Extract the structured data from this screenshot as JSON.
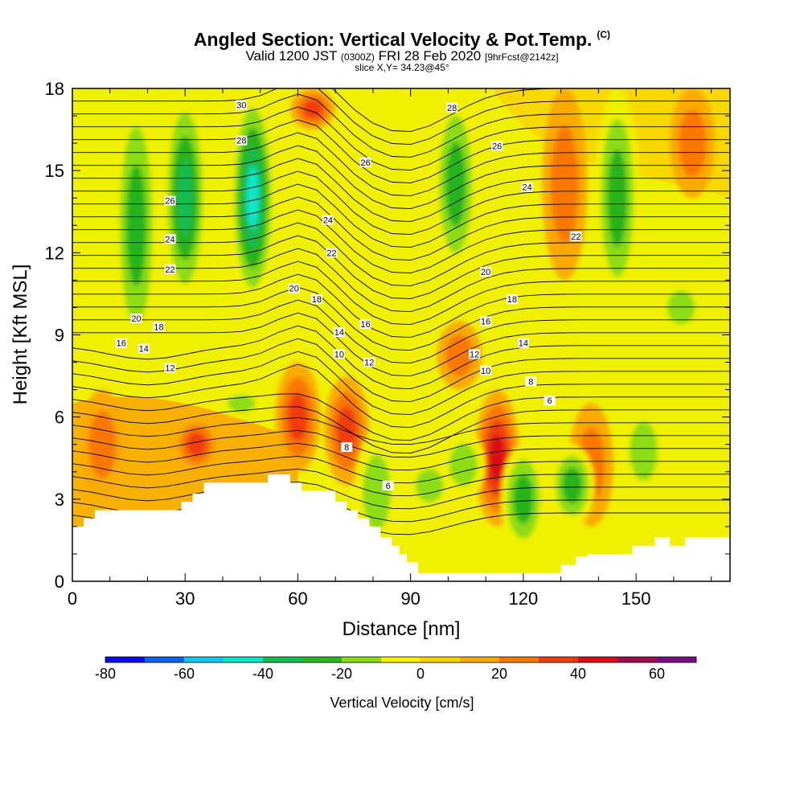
{
  "header": {
    "title": "Angled Section: Vertical Velocity & Pot.Temp.",
    "title_mark": "(C)",
    "valid_main": "Valid 1200 JST",
    "valid_z": "(0300Z)",
    "valid_date": "FRI 28 Feb 2020",
    "valid_fcst": "[9hrFcst@2142z]",
    "slice": "slice X,Y= 34.23@45°"
  },
  "chart_data": {
    "type": "heatmap",
    "title": "Angled Section: Vertical Velocity & Pot.Temp.",
    "xlabel": "Distance [nm]",
    "ylabel": "Height [Kft MSL]",
    "xlim": [
      0,
      175
    ],
    "ylim": [
      0,
      18
    ],
    "xticks": [
      0,
      30,
      60,
      90,
      120,
      150
    ],
    "yticks": [
      0,
      3,
      6,
      9,
      12,
      15,
      18
    ],
    "colorbar": {
      "label": "Vertical Velocity [cm/s]",
      "range": [
        -80,
        70
      ],
      "step": 10,
      "ticks": [
        -80,
        -60,
        -40,
        -20,
        0,
        20,
        40,
        60
      ],
      "colors": [
        "#0a0af0",
        "#0a64f0",
        "#0ac8f0",
        "#0ae6c8",
        "#14be50",
        "#28b41e",
        "#8cdc14",
        "#f0f000",
        "#fad200",
        "#faaa00",
        "#fa7800",
        "#f03c0a",
        "#dc0a14",
        "#a00a50",
        "#780a8c"
      ]
    },
    "velocity_features": [
      {
        "kind": "downdraft",
        "x": 48,
        "top": 18,
        "bottom": 10,
        "peak": -50
      },
      {
        "kind": "downdraft",
        "x": 17,
        "top": 18,
        "bottom": 8,
        "peak": -30
      },
      {
        "kind": "downdraft",
        "x": 30,
        "top": 18,
        "bottom": 10,
        "peak": -40
      },
      {
        "kind": "downdraft",
        "x": 102,
        "top": 18,
        "bottom": 11,
        "peak": -30
      },
      {
        "kind": "downdraft",
        "x": 145,
        "top": 18,
        "bottom": 10,
        "peak": -30
      },
      {
        "kind": "updraft",
        "x": 64,
        "top": 18,
        "bottom": 16.5,
        "peak": 30
      },
      {
        "kind": "updraft",
        "x": 60,
        "top": 8,
        "bottom": 4,
        "peak": 30
      },
      {
        "kind": "updraft",
        "x": 73,
        "top": 7.5,
        "bottom": 3.5,
        "peak": 30
      },
      {
        "kind": "updraft",
        "x": 113,
        "top": 7,
        "bottom": 2,
        "peak": 40
      },
      {
        "kind": "updraft",
        "x": 131,
        "top": 18,
        "bottom": 11,
        "peak": 20
      },
      {
        "kind": "updraft",
        "x": 165,
        "top": 18,
        "bottom": 14,
        "peak": 20
      },
      {
        "kind": "updraft",
        "x": 8,
        "top": 7,
        "bottom": 3,
        "peak": 20
      },
      {
        "kind": "updraft",
        "x": 33,
        "top": 6,
        "bottom": 4,
        "peak": 30
      },
      {
        "kind": "updraft",
        "x": 138,
        "top": 6.5,
        "bottom": 2,
        "peak": 20
      },
      {
        "kind": "updraft",
        "x": 103,
        "top": 9.5,
        "bottom": 7,
        "peak": 20
      },
      {
        "kind": "downdraft",
        "x": 95,
        "top": 4.5,
        "bottom": 2.5,
        "peak": -20
      },
      {
        "kind": "downdraft",
        "x": 104,
        "top": 5.5,
        "bottom": 3,
        "peak": -20
      },
      {
        "kind": "downdraft",
        "x": 120,
        "top": 5,
        "bottom": 1,
        "peak": -30
      },
      {
        "kind": "downdraft",
        "x": 133,
        "top": 5,
        "bottom": 2,
        "peak": -30
      },
      {
        "kind": "downdraft",
        "x": 152,
        "top": 6.5,
        "bottom": 3,
        "peak": -20
      },
      {
        "kind": "downdraft",
        "x": 162,
        "top": 11,
        "bottom": 9,
        "peak": -20
      },
      {
        "kind": "downdraft",
        "x": 81,
        "top": 5.5,
        "bottom": 1,
        "peak": -20
      },
      {
        "kind": "downdraft",
        "x": 45,
        "top": 7,
        "bottom": 6,
        "peak": -20
      }
    ],
    "terrain": [
      [
        0,
        2
      ],
      [
        3,
        2
      ],
      [
        3,
        2.3
      ],
      [
        6,
        2.3
      ],
      [
        6,
        2.6
      ],
      [
        29,
        2.6
      ],
      [
        29,
        2.9
      ],
      [
        32,
        2.9
      ],
      [
        32,
        3.2
      ],
      [
        35,
        3.2
      ],
      [
        35,
        3.6
      ],
      [
        52,
        3.6
      ],
      [
        52,
        3.9
      ],
      [
        58,
        3.9
      ],
      [
        58,
        3.6
      ],
      [
        61,
        3.6
      ],
      [
        61,
        3.3
      ],
      [
        70,
        3.3
      ],
      [
        70,
        2.9
      ],
      [
        73,
        2.9
      ],
      [
        73,
        2.6
      ],
      [
        76,
        2.6
      ],
      [
        76,
        2.3
      ],
      [
        79,
        2.3
      ],
      [
        79,
        2
      ],
      [
        82,
        2
      ],
      [
        82,
        1.6
      ],
      [
        85,
        1.6
      ],
      [
        85,
        1.3
      ],
      [
        87,
        1.3
      ],
      [
        87,
        1
      ],
      [
        89,
        1
      ],
      [
        89,
        0.7
      ],
      [
        92,
        0.7
      ],
      [
        92,
        0.3
      ],
      [
        130,
        0.3
      ],
      [
        130,
        0.6
      ],
      [
        134,
        0.6
      ],
      [
        134,
        0.9
      ],
      [
        137,
        0.9
      ],
      [
        137,
        1
      ],
      [
        143,
        1
      ],
      [
        143,
        1
      ],
      [
        149,
        1
      ],
      [
        149,
        1.3
      ],
      [
        155,
        1.3
      ],
      [
        155,
        1.6
      ],
      [
        159,
        1.6
      ],
      [
        159,
        1.3
      ],
      [
        163,
        1.3
      ],
      [
        163,
        1.6
      ],
      [
        175,
        1.6
      ]
    ],
    "theta_labels": [
      {
        "x": 45,
        "y": 17.4,
        "text": "30"
      },
      {
        "x": 45,
        "y": 16.1,
        "text": "28"
      },
      {
        "x": 101,
        "y": 17.3,
        "text": "28"
      },
      {
        "x": 113,
        "y": 15.9,
        "text": "26"
      },
      {
        "x": 78,
        "y": 15.3,
        "text": "26"
      },
      {
        "x": 26,
        "y": 13.9,
        "text": "26"
      },
      {
        "x": 121,
        "y": 14.4,
        "text": "24"
      },
      {
        "x": 68,
        "y": 13.2,
        "text": "24"
      },
      {
        "x": 26,
        "y": 12.5,
        "text": "24"
      },
      {
        "x": 134,
        "y": 12.6,
        "text": "22"
      },
      {
        "x": 69,
        "y": 12.0,
        "text": "22"
      },
      {
        "x": 26,
        "y": 11.4,
        "text": "22"
      },
      {
        "x": 110,
        "y": 11.3,
        "text": "20"
      },
      {
        "x": 59,
        "y": 10.7,
        "text": "20"
      },
      {
        "x": 17,
        "y": 9.6,
        "text": "20"
      },
      {
        "x": 117,
        "y": 10.3,
        "text": "18"
      },
      {
        "x": 65,
        "y": 10.3,
        "text": "18"
      },
      {
        "x": 23,
        "y": 9.3,
        "text": "18"
      },
      {
        "x": 110,
        "y": 9.5,
        "text": "16"
      },
      {
        "x": 78,
        "y": 9.4,
        "text": "16"
      },
      {
        "x": 13,
        "y": 8.7,
        "text": "16"
      },
      {
        "x": 120,
        "y": 8.7,
        "text": "14"
      },
      {
        "x": 71,
        "y": 9.1,
        "text": "14"
      },
      {
        "x": 19,
        "y": 8.5,
        "text": "14"
      },
      {
        "x": 107,
        "y": 8.3,
        "text": "12"
      },
      {
        "x": 79,
        "y": 8.0,
        "text": "12"
      },
      {
        "x": 26,
        "y": 7.8,
        "text": "12"
      },
      {
        "x": 110,
        "y": 7.7,
        "text": "10"
      },
      {
        "x": 71,
        "y": 8.3,
        "text": "10"
      },
      {
        "x": 122,
        "y": 7.3,
        "text": "8"
      },
      {
        "x": 73,
        "y": 4.9,
        "text": "8"
      },
      {
        "x": 127,
        "y": 6.6,
        "text": "6"
      },
      {
        "x": 84,
        "y": 3.5,
        "text": "6"
      }
    ]
  }
}
